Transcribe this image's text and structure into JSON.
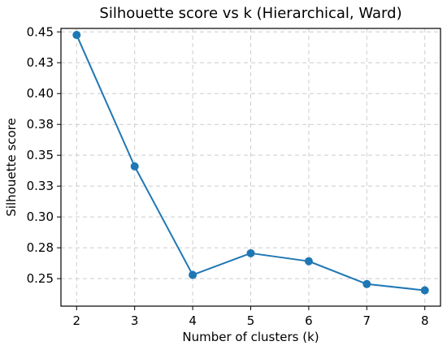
{
  "chart_data": {
    "type": "line",
    "title": "Silhouette score vs k (Hierarchical, Ward)",
    "xlabel": "Number of clusters (k)",
    "ylabel": "Silhouette score",
    "x": [
      2,
      3,
      4,
      5,
      6,
      7,
      8
    ],
    "series": [
      {
        "values": [
          0.4475,
          0.341,
          0.253,
          0.2706,
          0.2641,
          0.2456,
          0.2405
        ]
      }
    ],
    "xlim": [
      1.73,
      8.27
    ],
    "ylim": [
      0.2277,
      0.4528
    ],
    "x_ticks": [
      2,
      3,
      4,
      5,
      6,
      7,
      8
    ],
    "x_tick_labels": [
      "2",
      "3",
      "4",
      "5",
      "6",
      "7",
      "8"
    ],
    "y_ticks": [
      0.25,
      0.275,
      0.3,
      0.325,
      0.35,
      0.375,
      0.4,
      0.425,
      0.45
    ],
    "y_tick_labels": [
      "0.25",
      "0.28",
      "0.30",
      "0.33",
      "0.35",
      "0.38",
      "0.40",
      "0.43",
      "0.45"
    ],
    "grid": true,
    "line_color": "#1f77b4",
    "grid_color": "#cccccc",
    "marker": "circle"
  }
}
